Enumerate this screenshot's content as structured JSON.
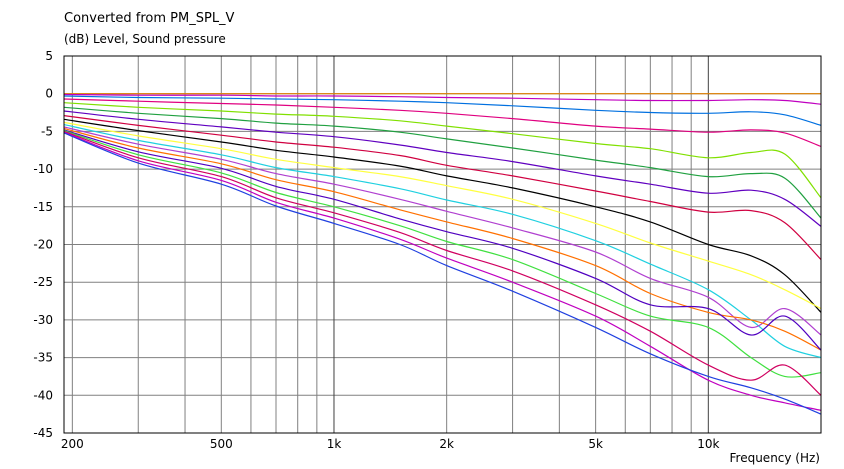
{
  "title": "Converted from PM_SPL_V",
  "ylabel": "(dB)  Level, Sound pressure",
  "xlabel": "Frequency  (Hz)",
  "chart_data": {
    "type": "line",
    "title": "Converted from PM_SPL_V",
    "ylabel": "(dB)  Level, Sound pressure",
    "xlabel": "Frequency  (Hz)",
    "x_scale": "log",
    "xlim": [
      190,
      20000
    ],
    "ylim": [
      -45,
      5
    ],
    "grid": true,
    "legend": "none",
    "y_ticks": [
      "5",
      "0",
      "-5",
      "-10",
      "-15",
      "-20",
      "-25",
      "-30",
      "-35",
      "-40",
      "-45"
    ],
    "x_ticks": [
      {
        "value": 200,
        "label": "200"
      },
      {
        "value": 500,
        "label": "500"
      },
      {
        "value": 1000,
        "label": "1k"
      },
      {
        "value": 2000,
        "label": "2k"
      },
      {
        "value": 5000,
        "label": "5k"
      },
      {
        "value": 10000,
        "label": "10k"
      }
    ],
    "x": [
      190,
      300,
      500,
      700,
      1000,
      1500,
      2000,
      3000,
      5000,
      7000,
      10000,
      13000,
      16000,
      20000
    ],
    "series": [
      {
        "color": "#e08000",
        "values": [
          0,
          0,
          0,
          0,
          0,
          0,
          0,
          0,
          0,
          0,
          0,
          0,
          0,
          0
        ]
      },
      {
        "color": "#c000c0",
        "values": [
          -0.1,
          -0.2,
          -0.2,
          -0.3,
          -0.3,
          -0.4,
          -0.5,
          -0.6,
          -0.8,
          -0.9,
          -0.9,
          -0.8,
          -0.9,
          -1.4
        ]
      },
      {
        "color": "#0070e0",
        "values": [
          -0.3,
          -0.5,
          -0.6,
          -0.7,
          -0.8,
          -1.0,
          -1.2,
          -1.6,
          -2.2,
          -2.5,
          -2.6,
          -2.4,
          -2.8,
          -4.2
        ]
      },
      {
        "color": "#e00080",
        "values": [
          -0.7,
          -1.0,
          -1.3,
          -1.5,
          -1.8,
          -2.2,
          -2.6,
          -3.3,
          -4.3,
          -4.7,
          -5.1,
          -4.8,
          -5.2,
          -7.0
        ]
      },
      {
        "color": "#80e000",
        "values": [
          -1.2,
          -1.8,
          -2.3,
          -2.7,
          -3.0,
          -3.6,
          -4.3,
          -5.3,
          -6.6,
          -7.3,
          -8.5,
          -7.8,
          -8.0,
          -13.8
        ]
      },
      {
        "color": "#20a040",
        "values": [
          -1.8,
          -2.6,
          -3.3,
          -3.9,
          -4.3,
          -5.1,
          -6.0,
          -7.2,
          -8.8,
          -9.8,
          -11.0,
          -10.6,
          -11.2,
          -16.5
        ]
      },
      {
        "color": "#6000c0",
        "values": [
          -2.3,
          -3.4,
          -4.4,
          -5.1,
          -5.7,
          -6.8,
          -7.8,
          -9.0,
          -10.9,
          -12.0,
          -13.2,
          -12.8,
          -14.0,
          -17.6
        ]
      },
      {
        "color": "#d00040",
        "values": [
          -2.9,
          -4.2,
          -5.5,
          -6.4,
          -7.1,
          -8.2,
          -9.5,
          -10.9,
          -12.9,
          -14.3,
          -15.7,
          -15.5,
          -17.1,
          -22.0
        ]
      },
      {
        "color": "#000000",
        "values": [
          -3.4,
          -4.9,
          -6.4,
          -7.5,
          -8.4,
          -9.6,
          -10.9,
          -12.5,
          -15.0,
          -17.0,
          -20.0,
          -21.5,
          -24.0,
          -29.0
        ]
      },
      {
        "color": "#ffff40",
        "values": [
          -3.8,
          -5.6,
          -7.3,
          -8.7,
          -9.8,
          -11.0,
          -12.2,
          -14.0,
          -17.2,
          -19.8,
          -22.2,
          -24.0,
          -26.0,
          -28.5
        ]
      },
      {
        "color": "#20d0e0",
        "values": [
          -4.1,
          -6.2,
          -8.1,
          -9.8,
          -11.0,
          -12.6,
          -14.1,
          -16.0,
          -19.5,
          -22.6,
          -26.0,
          -30.0,
          -33.5,
          -35.0
        ]
      },
      {
        "color": "#b040d0",
        "values": [
          -4.4,
          -6.7,
          -8.7,
          -10.6,
          -12.0,
          -14.0,
          -15.6,
          -17.8,
          -21.0,
          -24.5,
          -27.0,
          -31.0,
          -28.5,
          -32.0
        ]
      },
      {
        "color": "#ff7000",
        "values": [
          -4.6,
          -7.2,
          -9.3,
          -11.4,
          -13.0,
          -15.4,
          -17.0,
          -19.2,
          -22.8,
          -26.5,
          -29.0,
          -30.0,
          -31.5,
          -34.0
        ]
      },
      {
        "color": "#5000c0",
        "values": [
          -4.8,
          -7.7,
          -9.9,
          -12.3,
          -14.0,
          -16.6,
          -18.3,
          -20.5,
          -24.5,
          -28.0,
          -28.5,
          -32.0,
          -29.5,
          -34.0
        ]
      },
      {
        "color": "#40e040",
        "values": [
          -4.9,
          -8.1,
          -10.5,
          -13.1,
          -15.0,
          -17.5,
          -19.6,
          -22.0,
          -26.5,
          -29.5,
          -31.0,
          -35.0,
          -37.5,
          -37.0
        ]
      },
      {
        "color": "#d00060",
        "values": [
          -5.0,
          -8.5,
          -11.0,
          -13.8,
          -15.8,
          -18.4,
          -20.8,
          -23.5,
          -28.0,
          -31.5,
          -36.0,
          -38.0,
          -36.0,
          -40.0
        ]
      },
      {
        "color": "#c000c0",
        "values": [
          -5.1,
          -8.9,
          -11.5,
          -14.4,
          -16.5,
          -19.3,
          -21.8,
          -25.0,
          -29.5,
          -33.5,
          -38.0,
          -40.0,
          -41.0,
          -42.0
        ]
      },
      {
        "color": "#2040e0",
        "values": [
          -5.2,
          -9.2,
          -12.0,
          -14.9,
          -17.2,
          -20.0,
          -22.8,
          -26.2,
          -31.0,
          -34.5,
          -37.5,
          -39.0,
          -40.5,
          -42.5
        ]
      }
    ]
  }
}
